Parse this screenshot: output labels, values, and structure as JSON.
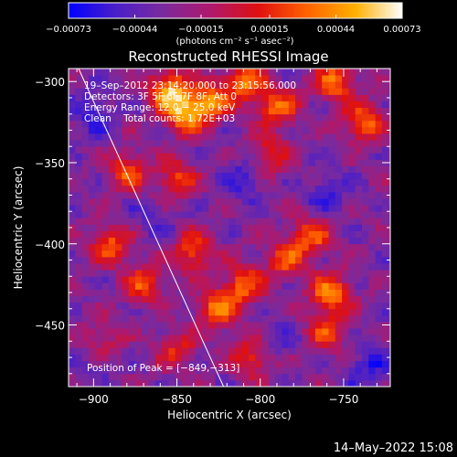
{
  "chart_data": {
    "type": "heatmap",
    "title": "Reconstructed RHESSI Image",
    "xlabel": "Heliocentric X (arcsec)",
    "ylabel": "Heliocentric Y (arcsec)",
    "xlim": [
      -915,
      -722
    ],
    "ylim": [
      -488,
      -292
    ],
    "x_ticks": [
      -900,
      -850,
      -800,
      -750
    ],
    "y_ticks": [
      -300,
      -350,
      -400,
      -450
    ],
    "x_tick_labels": [
      "−900",
      "−850",
      "−800",
      "−750"
    ],
    "y_tick_labels": [
      "−300",
      "−350",
      "−400",
      "−450"
    ],
    "colorbar": {
      "range": [
        -0.00073,
        0.00073
      ],
      "ticks": [
        -0.00073,
        -0.00044,
        -0.00015,
        0.00015,
        0.00044,
        0.00073
      ],
      "tick_labels": [
        "−0.00073",
        "−0.00044",
        "−0.00015",
        "0.00015",
        "0.00044",
        "0.00073"
      ],
      "unit_label": "(photons cm⁻² s⁻¹ asec⁻²)",
      "colors": [
        "#0000ff",
        "#4a1fc8",
        "#7a2a9e",
        "#b0186a",
        "#e01010",
        "#ff6000",
        "#ffb000",
        "#ffffff"
      ]
    },
    "annotations": {
      "time": "19–Sep–2012 23:14:20.000 to 23:15:56.000",
      "detectors": "Detectors: 3F 5F 6F 7F 8F, Att 0",
      "energy": "Energy Range: 12.0 − 25.0 keV",
      "method": "Clean    Total counts: 1.72E+03",
      "peak": "Position of Peak = [−849,−313]"
    },
    "limb_line": {
      "x": [
        -909,
        -822
      ],
      "y": [
        -292,
        -488
      ]
    },
    "peak_position": [
      -849,
      -313
    ],
    "bright_regions": [
      {
        "x": -855,
        "y": -305,
        "amp": 1.0
      },
      {
        "x": -845,
        "y": -320,
        "amp": 0.9
      },
      {
        "x": -830,
        "y": -312,
        "amp": 0.8
      },
      {
        "x": -810,
        "y": -300,
        "amp": 0.8
      },
      {
        "x": -790,
        "y": -315,
        "amp": 0.75
      },
      {
        "x": -755,
        "y": -300,
        "amp": 0.8
      },
      {
        "x": -738,
        "y": -325,
        "amp": 0.75
      },
      {
        "x": -880,
        "y": -355,
        "amp": 0.65
      },
      {
        "x": -850,
        "y": -360,
        "amp": 0.6
      },
      {
        "x": -795,
        "y": -345,
        "amp": 0.55
      },
      {
        "x": -890,
        "y": -400,
        "amp": 0.7
      },
      {
        "x": -870,
        "y": -425,
        "amp": 0.65
      },
      {
        "x": -840,
        "y": -405,
        "amp": 0.7
      },
      {
        "x": -825,
        "y": -440,
        "amp": 0.8
      },
      {
        "x": -810,
        "y": -425,
        "amp": 0.7
      },
      {
        "x": -785,
        "y": -410,
        "amp": 0.6
      },
      {
        "x": -770,
        "y": -395,
        "amp": 0.7
      },
      {
        "x": -758,
        "y": -430,
        "amp": 0.85
      },
      {
        "x": -760,
        "y": -455,
        "amp": 0.6
      },
      {
        "x": -805,
        "y": -470,
        "amp": 0.6
      },
      {
        "x": -850,
        "y": -465,
        "amp": 0.5
      },
      {
        "x": -895,
        "y": -460,
        "amp": 0.45
      }
    ],
    "dark_regions": [
      {
        "x": -900,
        "y": -320,
        "amp": 0.8
      },
      {
        "x": -810,
        "y": -360,
        "amp": 0.7
      },
      {
        "x": -760,
        "y": -370,
        "amp": 0.7
      },
      {
        "x": -900,
        "y": -470,
        "amp": 0.5
      },
      {
        "x": -790,
        "y": -460,
        "amp": 0.5
      },
      {
        "x": -735,
        "y": -475,
        "amp": 0.8
      },
      {
        "x": -865,
        "y": -385,
        "amp": 0.5
      }
    ]
  },
  "footer_date": "14–May–2022 15:08"
}
